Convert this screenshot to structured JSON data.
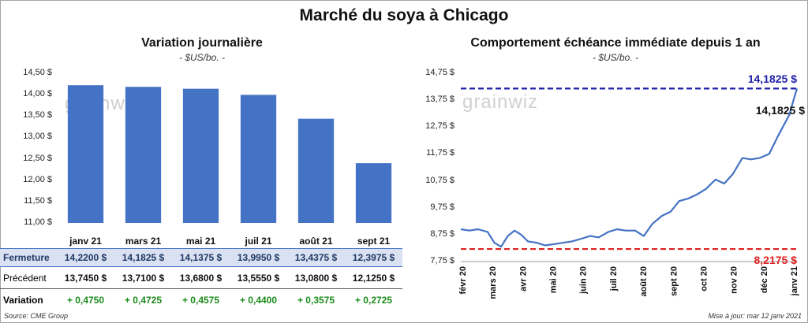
{
  "title": "Marché du soya à Chicago",
  "left": {
    "title": "Variation  journalière",
    "subtitle": "- $US/bo. -",
    "watermark": "grainwiz",
    "y_ticks": [
      "14,50 $",
      "14,00 $",
      "13,50 $",
      "13,00 $",
      "12,50 $",
      "12,00 $",
      "11,50 $",
      "11,00 $"
    ],
    "table": {
      "row_close_label": "Fermeture",
      "row_prev_label": "Précédent",
      "row_var_label": "Variation",
      "close": [
        "14,2200  $",
        "14,1825  $",
        "14,1375  $",
        "13,9950  $",
        "13,4375  $",
        "12,3975  $"
      ],
      "prev": [
        "13,7450  $",
        "13,7100  $",
        "13,6800  $",
        "13,5550  $",
        "13,0800  $",
        "12,1250  $"
      ],
      "var": [
        "+ 0,4750",
        "+ 0,4725",
        "+ 0,4575",
        "+ 0,4400",
        "+ 0,3575",
        "+ 0,2725"
      ]
    },
    "source": "Source: CME Group"
  },
  "right": {
    "title": "Comportement  échéance immédiate depuis 1 an",
    "subtitle": "- $US/bo. -",
    "watermark": "grainwiz",
    "y_ticks": [
      "14,75 $",
      "13,75 $",
      "12,75 $",
      "11,75 $",
      "10,75 $",
      "9,75 $",
      "8,75 $",
      "7,75 $"
    ],
    "x_ticks": [
      "févr 20",
      "mars 20",
      "avr 20",
      "mai 20",
      "juin 20",
      "juil 20",
      "août 20",
      "sept 20",
      "oct 20",
      "nov 20",
      "déc 20",
      "janv 21"
    ],
    "high_label": "14,1825  $",
    "last_label": "14,1825 $",
    "low_label": "8,2175  $",
    "update": "Mise à jour: mar 12 janv 2021"
  },
  "colors": {
    "bar": "#4472c4",
    "line": "#4472c4",
    "high": "#1f1fa8",
    "low": "#e02020",
    "positive": "#1a8a1a"
  },
  "chart_data": [
    {
      "type": "bar",
      "title": "Variation  journalière",
      "subtitle": "- $US/bo. -",
      "categories": [
        "janv 21",
        "mars 21",
        "mai 21",
        "juil 21",
        "août 21",
        "sept 21"
      ],
      "values": [
        14.22,
        14.1825,
        14.1375,
        13.995,
        13.4375,
        12.3975
      ],
      "ylim": [
        11.0,
        14.5
      ],
      "grid": false
    },
    {
      "type": "line",
      "title": "Comportement  échéance immédiate depuis 1 an",
      "subtitle": "- $US/bo. -",
      "ylim": [
        7.75,
        14.75
      ],
      "x": [
        "2020-01-27",
        "2020-02-05",
        "2020-02-14",
        "2020-02-24",
        "2020-03-02",
        "2020-03-09",
        "2020-03-16",
        "2020-03-23",
        "2020-03-30",
        "2020-04-06",
        "2020-04-15",
        "2020-04-24",
        "2020-05-04",
        "2020-05-13",
        "2020-05-22",
        "2020-06-01",
        "2020-06-10",
        "2020-06-19",
        "2020-06-29",
        "2020-07-08",
        "2020-07-17",
        "2020-07-27",
        "2020-08-05",
        "2020-08-14",
        "2020-08-24",
        "2020-09-02",
        "2020-09-11",
        "2020-09-21",
        "2020-09-30",
        "2020-10-09",
        "2020-10-19",
        "2020-10-28",
        "2020-11-06",
        "2020-11-16",
        "2020-11-25",
        "2020-12-04",
        "2020-12-14",
        "2020-12-23",
        "2021-01-04",
        "2021-01-08",
        "2021-01-12"
      ],
      "y": [
        8.95,
        8.9,
        8.95,
        8.85,
        8.45,
        8.3,
        8.7,
        8.9,
        8.75,
        8.5,
        8.45,
        8.35,
        8.4,
        8.45,
        8.5,
        8.6,
        8.7,
        8.65,
        8.85,
        8.95,
        8.9,
        8.9,
        8.7,
        9.15,
        9.45,
        9.6,
        10.0,
        10.1,
        10.25,
        10.45,
        10.8,
        10.65,
        11.0,
        11.6,
        11.55,
        11.6,
        11.75,
        12.4,
        13.2,
        13.7,
        14.1825
      ],
      "reference_lines": [
        {
          "value": 14.1825,
          "color": "#1f1fa8",
          "style": "dashed"
        },
        {
          "value": 8.2175,
          "color": "#e02020",
          "style": "dashed"
        }
      ],
      "grid": false
    }
  ]
}
